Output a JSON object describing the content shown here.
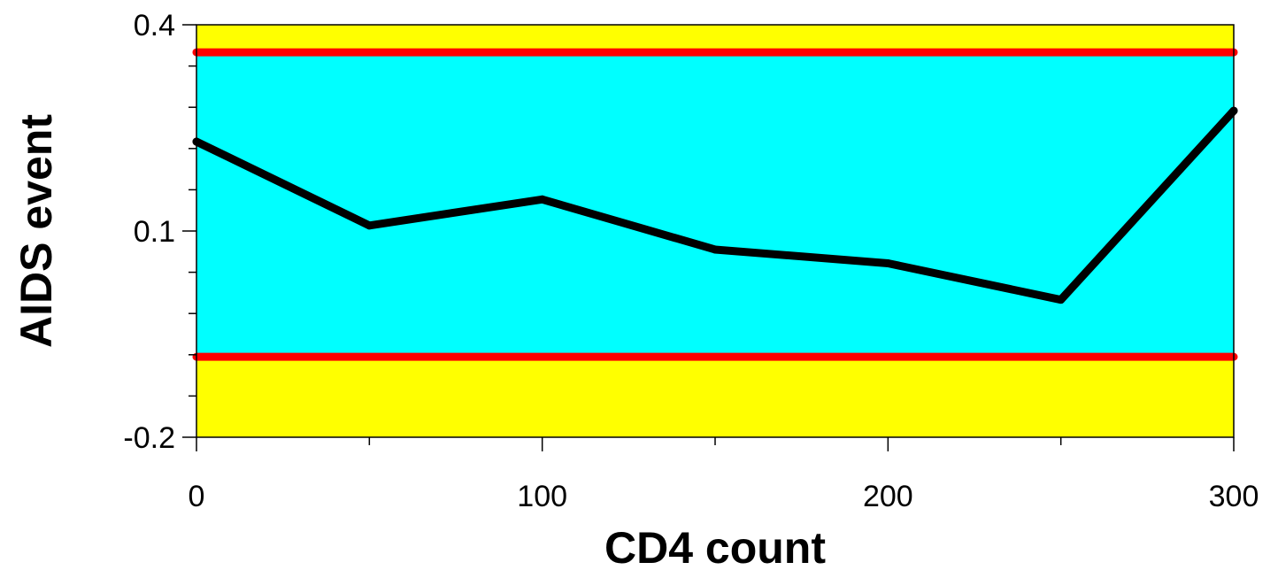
{
  "chart_data": {
    "type": "line",
    "xlabel": "CD4 count",
    "ylabel": "AIDS event",
    "xlim": [
      0,
      300
    ],
    "ylim": [
      -0.2,
      0.4
    ],
    "x_ticks": [
      0,
      100,
      200,
      300
    ],
    "x_tick_labels": [
      "0",
      "100",
      "200",
      "300"
    ],
    "x_minor_ticks": [
      50,
      150,
      250
    ],
    "y_ticks": [
      -0.2,
      0.1,
      0.4
    ],
    "y_tick_labels": [
      "-0.2",
      "0.1",
      "0.4"
    ],
    "y_minor_ticks": [
      -0.14,
      -0.08,
      -0.02,
      0.04,
      0.16,
      0.22,
      0.28,
      0.34
    ],
    "grid": false,
    "series": [
      {
        "x": [
          0,
          50,
          100,
          150,
          200,
          250,
          300
        ],
        "y": [
          0.23,
          0.108,
          0.146,
          0.073,
          0.053,
          0.0,
          0.275
        ],
        "color": "#000000"
      }
    ],
    "reference_lines": [
      {
        "y": 0.36,
        "color": "#ff0000"
      },
      {
        "y": -0.083,
        "color": "#ff0000"
      }
    ],
    "band": {
      "y_range": [
        -0.083,
        0.36
      ],
      "inside_color": "#00ffff",
      "outside_color": "#ffff00"
    }
  }
}
